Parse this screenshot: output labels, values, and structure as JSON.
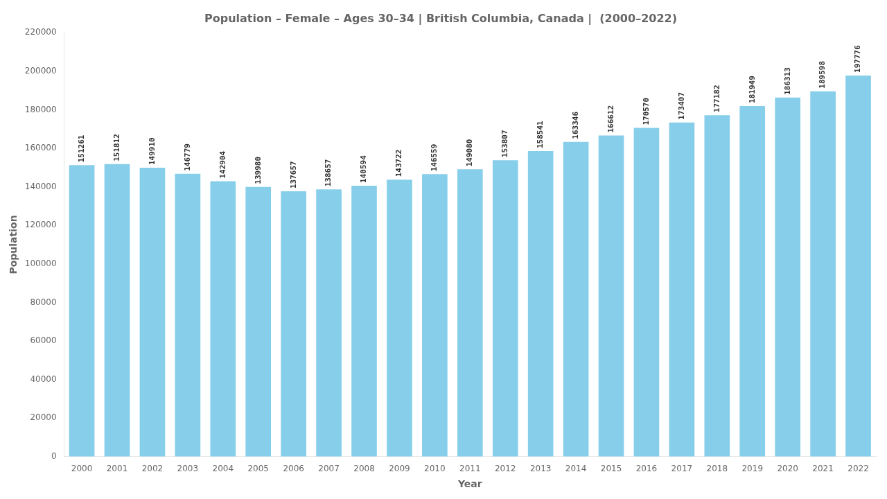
{
  "chart_data": {
    "type": "bar",
    "title": "Population – Female – Ages 30–34 | British Columbia, Canada |  (2000–2022)",
    "x_label": "Year",
    "y_label": "Population",
    "categories": [
      "2000",
      "2001",
      "2002",
      "2003",
      "2004",
      "2005",
      "2006",
      "2007",
      "2008",
      "2009",
      "2010",
      "2011",
      "2012",
      "2013",
      "2014",
      "2015",
      "2016",
      "2017",
      "2018",
      "2019",
      "2020",
      "2021",
      "2022"
    ],
    "values": [
      151261,
      151812,
      149910,
      146779,
      142904,
      139980,
      137657,
      138657,
      140594,
      143722,
      146559,
      149080,
      153807,
      158541,
      163346,
      166612,
      170570,
      173407,
      177182,
      181949,
      186313,
      189598,
      197776
    ],
    "color": "#87CEEB",
    "ylim": [
      0,
      220000
    ],
    "yticks": [
      0,
      20000,
      40000,
      60000,
      80000,
      100000,
      120000,
      140000,
      160000,
      180000,
      200000,
      220000
    ],
    "grid": false,
    "data_labels": true
  }
}
